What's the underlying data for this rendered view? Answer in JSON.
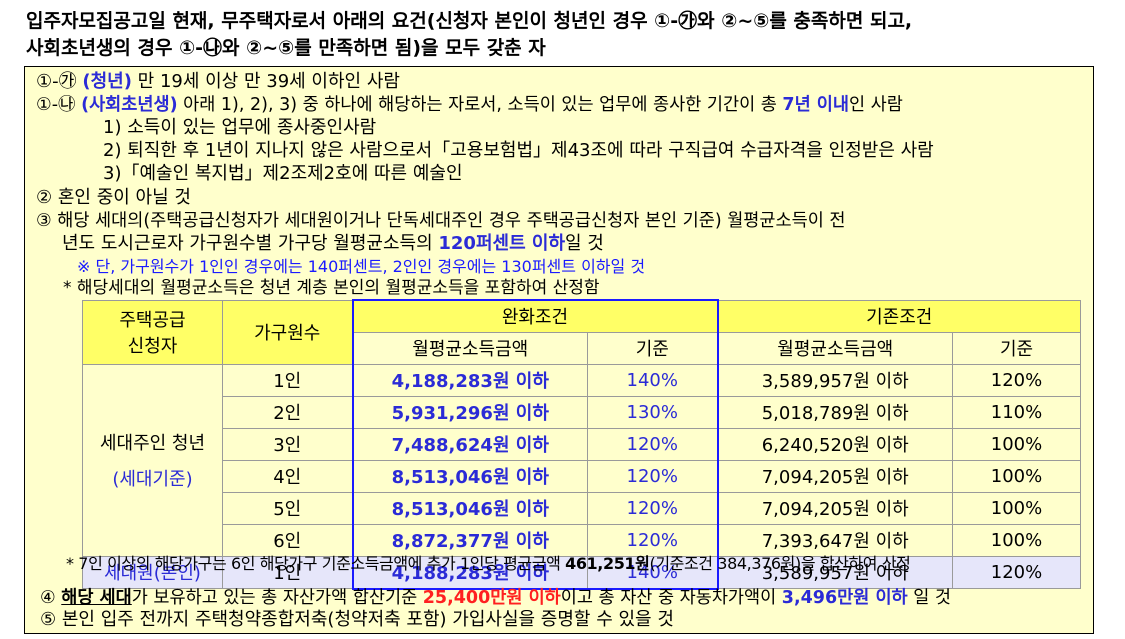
{
  "heading": {
    "line1": "입주자모집공고일 현재, 무주택자로서 아래의 요건(신청자 본인이 청년인 경우 ①-㉮와 ②~⑤를 충족하면 되고,",
    "line2": "사회초년생의 경우 ①-㉯와 ②~⑤를 만족하면 됨)을 모두 갖춘 자"
  },
  "req1a": {
    "prefix": "①-㉮ ",
    "label": "(청년)",
    "text": " 만 19세 이상 만 39세 이하인 사람"
  },
  "req1b": {
    "prefix": "①-㉯ ",
    "label": "(사회초년생)",
    "text": " 아래 1), 2), 3) 중 하나에 해당하는 자로서, 소득이 있는 업무에 종사한 기간이 총 ",
    "highlight": "7년 이내",
    "suffix": "인 사람"
  },
  "sub_items": [
    "1) 소득이 있는 업무에 종사중인사람",
    "2) 퇴직한 후 1년이 지나지 않은 사람으로서「고용보험법」제43조에 따라 구직급여 수급자격을 인정받은 사람",
    "3)「예술인 복지법」제2조제2호에 따른 예술인"
  ],
  "req2": "② 혼인 중이 아닐 것",
  "req3": {
    "line1": "③ 해당 세대의(주택공급신청자가 세대원이거나 단독세대주인 경우 주택공급신청자 본인 기준) 월평균소득이 전",
    "line2_text": "년도 도시근로자 가구원수별 가구당 월평균소득의 ",
    "line2_highlight": "120퍼센트 이하",
    "line2_suffix": "일 것",
    "note": "※ 단, 가구원수가 1인인 경우에는 140퍼센트, 2인인 경우에는 130퍼센트 이하일 것"
  },
  "income_note": "* 해당세대의 월평균소득은 청년 계층 본인의 월평균소득을 포함하여 산정함",
  "table": {
    "h_applicant_1": "주택공급",
    "h_applicant_2": "신청자",
    "h_members": "가구원수",
    "h_relaxed": "완화조건",
    "h_existing": "기존조건",
    "h_income": "월평균소득금액",
    "h_criteria": "기준",
    "group1_label": "세대주인 청년",
    "group1_sub": "(세대기준)",
    "group2_label": "세대원(본인)",
    "rows": [
      {
        "members": "1인",
        "relaxed": "4,188,283원 이하",
        "relaxed_pct": "140%",
        "existing": "3,589,957원 이하",
        "existing_pct": "120%"
      },
      {
        "members": "2인",
        "relaxed": "5,931,296원 이하",
        "relaxed_pct": "130%",
        "existing": "5,018,789원 이하",
        "existing_pct": "110%"
      },
      {
        "members": "3인",
        "relaxed": "7,488,624원 이하",
        "relaxed_pct": "120%",
        "existing": "6,240,520원 이하",
        "existing_pct": "100%"
      },
      {
        "members": "4인",
        "relaxed": "8,513,046원 이하",
        "relaxed_pct": "120%",
        "existing": "7,094,205원 이하",
        "existing_pct": "100%"
      },
      {
        "members": "5인",
        "relaxed": "8,513,046원 이하",
        "relaxed_pct": "120%",
        "existing": "7,094,205원 이하",
        "existing_pct": "100%"
      },
      {
        "members": "6인",
        "relaxed": "8,872,377원 이하",
        "relaxed_pct": "120%",
        "existing": "7,393,647원 이하",
        "existing_pct": "100%"
      },
      {
        "members": "1인",
        "relaxed": "4,188,283원 이하",
        "relaxed_pct": "140%",
        "existing": "3,589,957원 이하",
        "existing_pct": "120%"
      }
    ]
  },
  "seven_note": {
    "text": "* 7인 이상의 해당가구는 6인 해당가구 기준소득금액에 추가 1인당 평균금액 ",
    "amount": "461,251원",
    "paren": "(기준조건 384,376원)",
    "suffix": "을 합산하여 산정"
  },
  "req4": {
    "prefix": "④ ",
    "u": "해당 세대",
    "text1": "가 보유하고 있는 총 자산가액 합산기준 ",
    "red": "25,400만원 이하",
    "text2": "이고 총 자산 중 자동차가액이 ",
    "blue": "3,496만원 이하",
    "suffix": " 일 것"
  },
  "req5": "⑤ 본인 입주 전까지 주택청약종합저축(청약저축 포함) 가입사실을 증명할 수 있을 것"
}
